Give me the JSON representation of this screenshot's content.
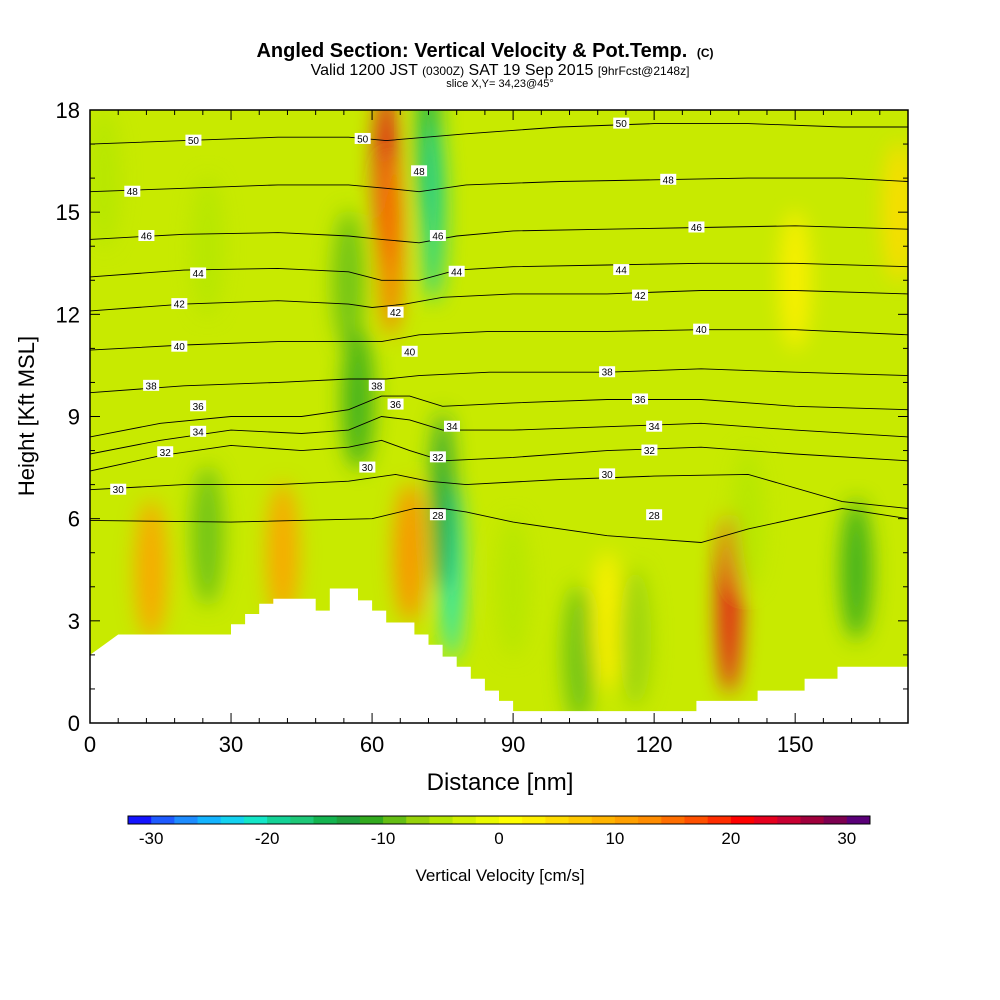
{
  "header": {
    "title_main": "Angled Section: Vertical Velocity & Pot.Temp.",
    "title_unit": "(C)",
    "valid_prefix": "Valid 1200 JST",
    "valid_z": "(0300Z)",
    "valid_date": "SAT 19 Sep 2015",
    "valid_fcst": "[9hrFcst@2148z]",
    "slice": "slice X,Y= 34,23@45°"
  },
  "colorbar": {
    "label": "Vertical Velocity [cm/s]",
    "min": -32,
    "max": 32,
    "step": 2,
    "ticks": [
      "-30",
      "-20",
      "-10",
      "0",
      "10",
      "20",
      "30"
    ],
    "tick_values": [
      -30,
      -20,
      -10,
      0,
      10,
      20,
      30
    ],
    "colors": [
      "#1414ff",
      "#1e5aff",
      "#1e8cff",
      "#14b4ff",
      "#14d2f0",
      "#14e6c8",
      "#14d296",
      "#1ec878",
      "#14b450",
      "#1ea03c",
      "#32aa1e",
      "#64be14",
      "#96d20a",
      "#b4e600",
      "#d2f000",
      "#eafa00",
      "#ffff00",
      "#fff000",
      "#ffdc00",
      "#ffc800",
      "#ffb400",
      "#ffa000",
      "#ff8c00",
      "#ff6e00",
      "#ff5000",
      "#ff2d00",
      "#ff0000",
      "#e6001e",
      "#c80032",
      "#a0003c",
      "#7d0050",
      "#5a0078"
    ]
  },
  "chart_data": {
    "type": "heatmap",
    "xlabel": "Distance [nm]",
    "ylabel": "Height [Kft MSL]",
    "xlim": [
      0,
      174
    ],
    "ylim": [
      0,
      18
    ],
    "xticks": [
      0,
      30,
      60,
      90,
      120,
      150
    ],
    "yticks": [
      0,
      3,
      6,
      9,
      12,
      15,
      18
    ],
    "xtick_labels": [
      "0",
      "30",
      "60",
      "90",
      "120",
      "150"
    ],
    "ytick_labels": [
      "0",
      "3",
      "6",
      "9",
      "12",
      "15",
      "18"
    ],
    "field": "Vertical Velocity [cm/s]",
    "vertical_velocity_features": [
      {
        "x": 63,
        "y": 16,
        "value": 22
      },
      {
        "x": 64,
        "y": 14,
        "value": 14
      },
      {
        "x": 72,
        "y": 17,
        "value": -16
      },
      {
        "x": 73,
        "y": 15,
        "value": -20
      },
      {
        "x": 77,
        "y": 4.5,
        "value": -22
      },
      {
        "x": 75,
        "y": 6.5,
        "value": -14
      },
      {
        "x": 68,
        "y": 5,
        "value": 12
      },
      {
        "x": 55,
        "y": 13,
        "value": -10
      },
      {
        "x": 57,
        "y": 9.5,
        "value": -12
      },
      {
        "x": 136,
        "y": 3.5,
        "value": 22
      },
      {
        "x": 13,
        "y": 4.5,
        "value": 10
      },
      {
        "x": 41,
        "y": 5,
        "value": 10
      },
      {
        "x": 25,
        "y": 5.5,
        "value": -10
      },
      {
        "x": 104,
        "y": 2,
        "value": -10
      },
      {
        "x": 110,
        "y": 3,
        "value": 3
      },
      {
        "x": 116,
        "y": 2.5,
        "value": -8
      },
      {
        "x": 163,
        "y": 4.5,
        "value": -12
      },
      {
        "x": 90,
        "y": 4,
        "value": -6
      },
      {
        "x": 3,
        "y": 16,
        "value": -6
      },
      {
        "x": 25,
        "y": 14,
        "value": -6
      },
      {
        "x": 150,
        "y": 13,
        "value": 3
      },
      {
        "x": 140,
        "y": 6,
        "value": -6
      },
      {
        "x": 172,
        "y": 15,
        "value": 5
      }
    ],
    "terrain_kft": [
      [
        0,
        2.0
      ],
      [
        3,
        2.3
      ],
      [
        6,
        2.6
      ],
      [
        30,
        2.6
      ],
      [
        30,
        2.9
      ],
      [
        33,
        2.9
      ],
      [
        33,
        3.2
      ],
      [
        36,
        3.2
      ],
      [
        36,
        3.5
      ],
      [
        39,
        3.5
      ],
      [
        39,
        3.65
      ],
      [
        48,
        3.65
      ],
      [
        48,
        3.3
      ],
      [
        51,
        3.3
      ],
      [
        51,
        3.95
      ],
      [
        57,
        3.95
      ],
      [
        57,
        3.6
      ],
      [
        60,
        3.6
      ],
      [
        60,
        3.3
      ],
      [
        63,
        3.3
      ],
      [
        63,
        2.95
      ],
      [
        69,
        2.95
      ],
      [
        69,
        2.6
      ],
      [
        72,
        2.6
      ],
      [
        72,
        2.3
      ],
      [
        75,
        2.3
      ],
      [
        75,
        1.95
      ],
      [
        78,
        1.95
      ],
      [
        78,
        1.65
      ],
      [
        81,
        1.65
      ],
      [
        81,
        1.3
      ],
      [
        84,
        1.3
      ],
      [
        84,
        0.95
      ],
      [
        87,
        0.95
      ],
      [
        87,
        0.65
      ],
      [
        90,
        0.65
      ],
      [
        90,
        0.35
      ],
      [
        129,
        0.35
      ],
      [
        129,
        0.65
      ],
      [
        142,
        0.65
      ],
      [
        142,
        0.95
      ],
      [
        152,
        0.95
      ],
      [
        152,
        1.3
      ],
      [
        159,
        1.3
      ],
      [
        159,
        1.65
      ],
      [
        174,
        1.65
      ]
    ],
    "theta_contours": [
      {
        "label": "28",
        "points": [
          [
            0,
            5.95
          ],
          [
            30,
            5.9
          ],
          [
            60,
            6.0
          ],
          [
            69,
            6.3
          ],
          [
            75,
            6.3
          ],
          [
            80,
            6.2
          ],
          [
            90,
            5.9
          ],
          [
            110,
            5.5
          ],
          [
            130,
            5.3
          ],
          [
            140,
            5.7
          ],
          [
            160,
            6.3
          ],
          [
            174,
            6.0
          ]
        ],
        "label_at": [
          [
            74,
            6.1
          ],
          [
            120,
            6.1
          ]
        ]
      },
      {
        "label": "30",
        "points": [
          [
            0,
            6.85
          ],
          [
            20,
            7.0
          ],
          [
            40,
            7.0
          ],
          [
            55,
            7.1
          ],
          [
            65,
            7.3
          ],
          [
            72,
            7.1
          ],
          [
            80,
            7.0
          ],
          [
            100,
            7.15
          ],
          [
            120,
            7.25
          ],
          [
            140,
            7.3
          ],
          [
            160,
            6.5
          ],
          [
            174,
            6.3
          ]
        ],
        "label_at": [
          [
            6,
            6.85
          ],
          [
            59,
            7.5
          ],
          [
            110,
            7.3
          ]
        ]
      },
      {
        "label": "32",
        "points": [
          [
            0,
            7.4
          ],
          [
            15,
            7.85
          ],
          [
            30,
            8.15
          ],
          [
            45,
            8.0
          ],
          [
            55,
            8.1
          ],
          [
            62,
            8.3
          ],
          [
            68,
            8.0
          ],
          [
            75,
            7.7
          ],
          [
            90,
            7.8
          ],
          [
            110,
            8.0
          ],
          [
            130,
            8.1
          ],
          [
            150,
            7.9
          ],
          [
            174,
            7.7
          ]
        ],
        "label_at": [
          [
            16,
            7.95
          ],
          [
            74,
            7.8
          ],
          [
            119,
            8.0
          ]
        ]
      },
      {
        "label": "34",
        "points": [
          [
            0,
            7.9
          ],
          [
            15,
            8.3
          ],
          [
            30,
            8.6
          ],
          [
            45,
            8.5
          ],
          [
            55,
            8.6
          ],
          [
            62,
            9.0
          ],
          [
            68,
            8.9
          ],
          [
            75,
            8.6
          ],
          [
            90,
            8.6
          ],
          [
            110,
            8.7
          ],
          [
            130,
            8.8
          ],
          [
            150,
            8.6
          ],
          [
            174,
            8.4
          ]
        ],
        "label_at": [
          [
            23,
            8.55
          ],
          [
            77,
            8.7
          ],
          [
            120,
            8.7
          ]
        ]
      },
      {
        "label": "36",
        "points": [
          [
            0,
            8.4
          ],
          [
            15,
            8.8
          ],
          [
            30,
            9.0
          ],
          [
            45,
            9.0
          ],
          [
            55,
            9.2
          ],
          [
            62,
            9.6
          ],
          [
            68,
            9.6
          ],
          [
            75,
            9.3
          ],
          [
            90,
            9.4
          ],
          [
            110,
            9.5
          ],
          [
            130,
            9.5
          ],
          [
            150,
            9.3
          ],
          [
            174,
            9.2
          ]
        ],
        "label_at": [
          [
            23,
            9.3
          ],
          [
            65,
            9.35
          ],
          [
            117,
            9.5
          ]
        ]
      },
      {
        "label": "38",
        "points": [
          [
            0,
            9.7
          ],
          [
            20,
            9.9
          ],
          [
            40,
            10.0
          ],
          [
            55,
            10.1
          ],
          [
            63,
            10.1
          ],
          [
            70,
            10.2
          ],
          [
            85,
            10.3
          ],
          [
            110,
            10.3
          ],
          [
            130,
            10.4
          ],
          [
            150,
            10.3
          ],
          [
            174,
            10.2
          ]
        ],
        "label_at": [
          [
            13,
            9.9
          ],
          [
            61,
            9.9
          ],
          [
            110,
            10.3
          ]
        ]
      },
      {
        "label": "40",
        "points": [
          [
            0,
            10.95
          ],
          [
            20,
            11.1
          ],
          [
            40,
            11.2
          ],
          [
            55,
            11.2
          ],
          [
            62,
            11.2
          ],
          [
            70,
            11.4
          ],
          [
            85,
            11.5
          ],
          [
            110,
            11.5
          ],
          [
            130,
            11.55
          ],
          [
            150,
            11.55
          ],
          [
            174,
            11.4
          ]
        ],
        "label_at": [
          [
            19,
            11.05
          ],
          [
            68,
            10.9
          ],
          [
            130,
            11.55
          ]
        ]
      },
      {
        "label": "42",
        "points": [
          [
            0,
            12.1
          ],
          [
            20,
            12.3
          ],
          [
            40,
            12.4
          ],
          [
            55,
            12.3
          ],
          [
            60,
            12.2
          ],
          [
            67,
            12.3
          ],
          [
            75,
            12.5
          ],
          [
            90,
            12.6
          ],
          [
            110,
            12.6
          ],
          [
            130,
            12.7
          ],
          [
            150,
            12.7
          ],
          [
            174,
            12.6
          ]
        ],
        "label_at": [
          [
            19,
            12.3
          ],
          [
            65,
            12.05
          ],
          [
            117,
            12.55
          ]
        ]
      },
      {
        "label": "44",
        "points": [
          [
            0,
            13.1
          ],
          [
            20,
            13.3
          ],
          [
            40,
            13.35
          ],
          [
            55,
            13.25
          ],
          [
            62,
            13.0
          ],
          [
            70,
            13.0
          ],
          [
            78,
            13.3
          ],
          [
            90,
            13.4
          ],
          [
            110,
            13.45
          ],
          [
            130,
            13.5
          ],
          [
            150,
            13.5
          ],
          [
            174,
            13.4
          ]
        ],
        "label_at": [
          [
            23,
            13.2
          ],
          [
            78,
            13.25
          ],
          [
            113,
            13.3
          ]
        ]
      },
      {
        "label": "46",
        "points": [
          [
            0,
            14.2
          ],
          [
            20,
            14.35
          ],
          [
            40,
            14.4
          ],
          [
            55,
            14.3
          ],
          [
            62,
            14.2
          ],
          [
            70,
            14.1
          ],
          [
            78,
            14.3
          ],
          [
            90,
            14.45
          ],
          [
            110,
            14.5
          ],
          [
            130,
            14.55
          ],
          [
            150,
            14.6
          ],
          [
            174,
            14.5
          ]
        ],
        "label_at": [
          [
            12,
            14.3
          ],
          [
            74,
            14.3
          ],
          [
            129,
            14.55
          ]
        ]
      },
      {
        "label": "48",
        "points": [
          [
            0,
            15.6
          ],
          [
            20,
            15.7
          ],
          [
            40,
            15.8
          ],
          [
            55,
            15.8
          ],
          [
            63,
            15.7
          ],
          [
            70,
            15.6
          ],
          [
            80,
            15.8
          ],
          [
            100,
            15.9
          ],
          [
            120,
            15.95
          ],
          [
            140,
            16.0
          ],
          [
            160,
            16.0
          ],
          [
            174,
            15.9
          ]
        ],
        "label_at": [
          [
            9,
            15.6
          ],
          [
            70,
            16.2
          ],
          [
            123,
            15.95
          ]
        ]
      },
      {
        "label": "50",
        "points": [
          [
            0,
            17.0
          ],
          [
            20,
            17.1
          ],
          [
            40,
            17.2
          ],
          [
            55,
            17.2
          ],
          [
            63,
            17.1
          ],
          [
            80,
            17.3
          ],
          [
            100,
            17.5
          ],
          [
            120,
            17.6
          ],
          [
            140,
            17.6
          ],
          [
            160,
            17.5
          ],
          [
            174,
            17.5
          ]
        ],
        "label_at": [
          [
            22,
            17.1
          ],
          [
            58,
            17.15
          ],
          [
            113,
            17.6
          ]
        ]
      }
    ]
  }
}
